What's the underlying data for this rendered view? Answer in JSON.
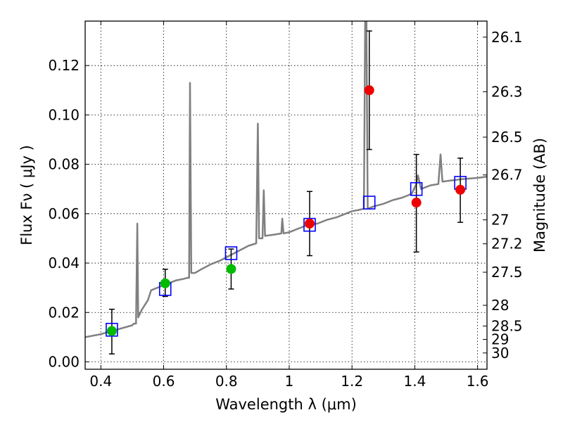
{
  "chart_data": {
    "type": "scatter",
    "title": "",
    "xlabel": "Wavelength  λ (μm)",
    "ylabel": "Flux  Fν  ( μJy )",
    "ylabel_right": "Magnitude (AB)",
    "xlim": [
      0.35,
      1.63
    ],
    "ylim": [
      -0.003,
      0.138
    ],
    "grid": true,
    "x_ticks": [
      0.4,
      0.6,
      0.8,
      1.0,
      1.2,
      1.4,
      1.6
    ],
    "x_tick_labels": [
      "0.4",
      "0.6",
      "0.8",
      "1",
      "1.2",
      "1.4",
      "1.6"
    ],
    "y_ticks": [
      0.0,
      0.02,
      0.04,
      0.06,
      0.08,
      0.1,
      0.12
    ],
    "y_tick_labels": [
      "0.00",
      "0.02",
      "0.04",
      "0.06",
      "0.08",
      "0.10",
      "0.12"
    ],
    "right_ticks": [
      {
        "label": "26.1",
        "flux": 0.1315
      },
      {
        "label": "26.3",
        "flux": 0.1094
      },
      {
        "label": "26.5",
        "flux": 0.091
      },
      {
        "label": "26.7",
        "flux": 0.0757
      },
      {
        "label": "27",
        "flux": 0.0575
      },
      {
        "label": "27.2",
        "flux": 0.0478
      },
      {
        "label": "27.5",
        "flux": 0.0363
      },
      {
        "label": "28",
        "flux": 0.0229
      },
      {
        "label": "28.5",
        "flux": 0.0145
      },
      {
        "label": "29",
        "flux": 0.0091
      },
      {
        "label": "30",
        "flux": 0.0036
      }
    ],
    "model_spectrum": {
      "color": "#808080",
      "points": [
        [
          0.35,
          0.01
        ],
        [
          0.4,
          0.0112
        ],
        [
          0.45,
          0.013
        ],
        [
          0.5,
          0.0148
        ],
        [
          0.505,
          0.0155
        ],
        [
          0.512,
          0.0155
        ],
        [
          0.516,
          0.056
        ],
        [
          0.519,
          0.018
        ],
        [
          0.53,
          0.021
        ],
        [
          0.55,
          0.025
        ],
        [
          0.56,
          0.029
        ],
        [
          0.58,
          0.03
        ],
        [
          0.6,
          0.031
        ],
        [
          0.62,
          0.032
        ],
        [
          0.64,
          0.033
        ],
        [
          0.66,
          0.0335
        ],
        [
          0.675,
          0.034
        ],
        [
          0.681,
          0.034
        ],
        [
          0.684,
          0.113
        ],
        [
          0.688,
          0.036
        ],
        [
          0.7,
          0.036
        ],
        [
          0.72,
          0.0375
        ],
        [
          0.75,
          0.0395
        ],
        [
          0.78,
          0.041
        ],
        [
          0.81,
          0.043
        ],
        [
          0.84,
          0.045
        ],
        [
          0.87,
          0.047
        ],
        [
          0.895,
          0.048
        ],
        [
          0.9,
          0.0965
        ],
        [
          0.904,
          0.05
        ],
        [
          0.915,
          0.05
        ],
        [
          0.919,
          0.0695
        ],
        [
          0.923,
          0.051
        ],
        [
          0.95,
          0.0515
        ],
        [
          0.975,
          0.052
        ],
        [
          0.978,
          0.058
        ],
        [
          0.982,
          0.052
        ],
        [
          1.0,
          0.0525
        ],
        [
          1.03,
          0.054
        ],
        [
          1.06,
          0.0555
        ],
        [
          1.09,
          0.056
        ],
        [
          1.12,
          0.0575
        ],
        [
          1.15,
          0.0585
        ],
        [
          1.18,
          0.06
        ],
        [
          1.2,
          0.061
        ],
        [
          1.22,
          0.0615
        ],
        [
          1.238,
          0.062
        ],
        [
          1.242,
          0.138
        ],
        [
          1.246,
          0.138
        ],
        [
          1.25,
          0.062
        ],
        [
          1.27,
          0.063
        ],
        [
          1.3,
          0.064
        ],
        [
          1.33,
          0.0655
        ],
        [
          1.36,
          0.0665
        ],
        [
          1.39,
          0.068
        ],
        [
          1.405,
          0.072
        ],
        [
          1.41,
          0.0755
        ],
        [
          1.42,
          0.07
        ],
        [
          1.45,
          0.0715
        ],
        [
          1.475,
          0.072
        ],
        [
          1.482,
          0.084
        ],
        [
          1.488,
          0.073
        ],
        [
          1.52,
          0.0735
        ],
        [
          1.55,
          0.074
        ],
        [
          1.6,
          0.0745
        ],
        [
          1.63,
          0.075
        ]
      ]
    },
    "model_photometry": {
      "marker": "open-square",
      "color": "#0000ff",
      "points": [
        [
          0.435,
          0.013
        ],
        [
          0.605,
          0.0295
        ],
        [
          0.815,
          0.044
        ],
        [
          1.065,
          0.0555
        ],
        [
          1.255,
          0.0645
        ],
        [
          1.405,
          0.07
        ],
        [
          1.545,
          0.0725
        ]
      ]
    },
    "observed_green": {
      "color": "#00bb00",
      "points": [
        {
          "x": 0.435,
          "y": 0.0125,
          "err_low": 0.0032,
          "err_high": 0.0213
        },
        {
          "x": 0.605,
          "y": 0.0318,
          "err_low": 0.0265,
          "err_high": 0.0375
        },
        {
          "x": 0.815,
          "y": 0.0376,
          "err_low": 0.0295,
          "err_high": 0.0457
        }
      ]
    },
    "observed_red": {
      "color": "#ee0000",
      "points": [
        {
          "x": 1.065,
          "y": 0.056,
          "err_low": 0.043,
          "err_high": 0.069
        },
        {
          "x": 1.255,
          "y": 0.11,
          "err_low": 0.086,
          "err_high": 0.134
        },
        {
          "x": 1.405,
          "y": 0.0645,
          "err_low": 0.0445,
          "err_high": 0.084
        },
        {
          "x": 1.545,
          "y": 0.0697,
          "err_low": 0.0565,
          "err_high": 0.0825
        }
      ]
    }
  }
}
